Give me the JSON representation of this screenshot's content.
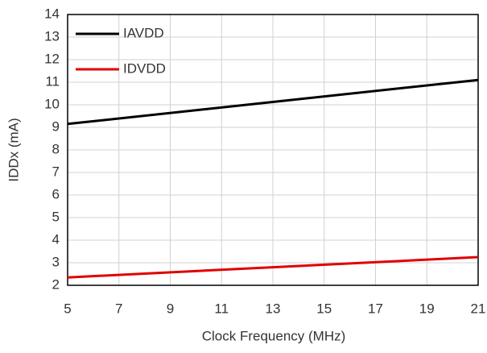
{
  "chart_data": {
    "type": "line",
    "x_label": "Clock Frequency (MHz)",
    "y_label": "IDDx (mA)",
    "x": [
      5,
      21
    ],
    "series": [
      {
        "name": "IAVDD",
        "color": "#000000",
        "values": [
          9.15,
          11.1
        ]
      },
      {
        "name": "IDVDD",
        "color": "#e00000",
        "values": [
          2.35,
          3.25
        ]
      }
    ],
    "xlim": [
      5,
      21
    ],
    "xticks": [
      5,
      7,
      9,
      11,
      13,
      15,
      17,
      19,
      21
    ],
    "ylim": [
      2,
      14
    ],
    "yticks": [
      2,
      3,
      4,
      5,
      6,
      7,
      8,
      9,
      10,
      11,
      12,
      13,
      14
    ],
    "grid": true,
    "legend": "upper-left"
  }
}
